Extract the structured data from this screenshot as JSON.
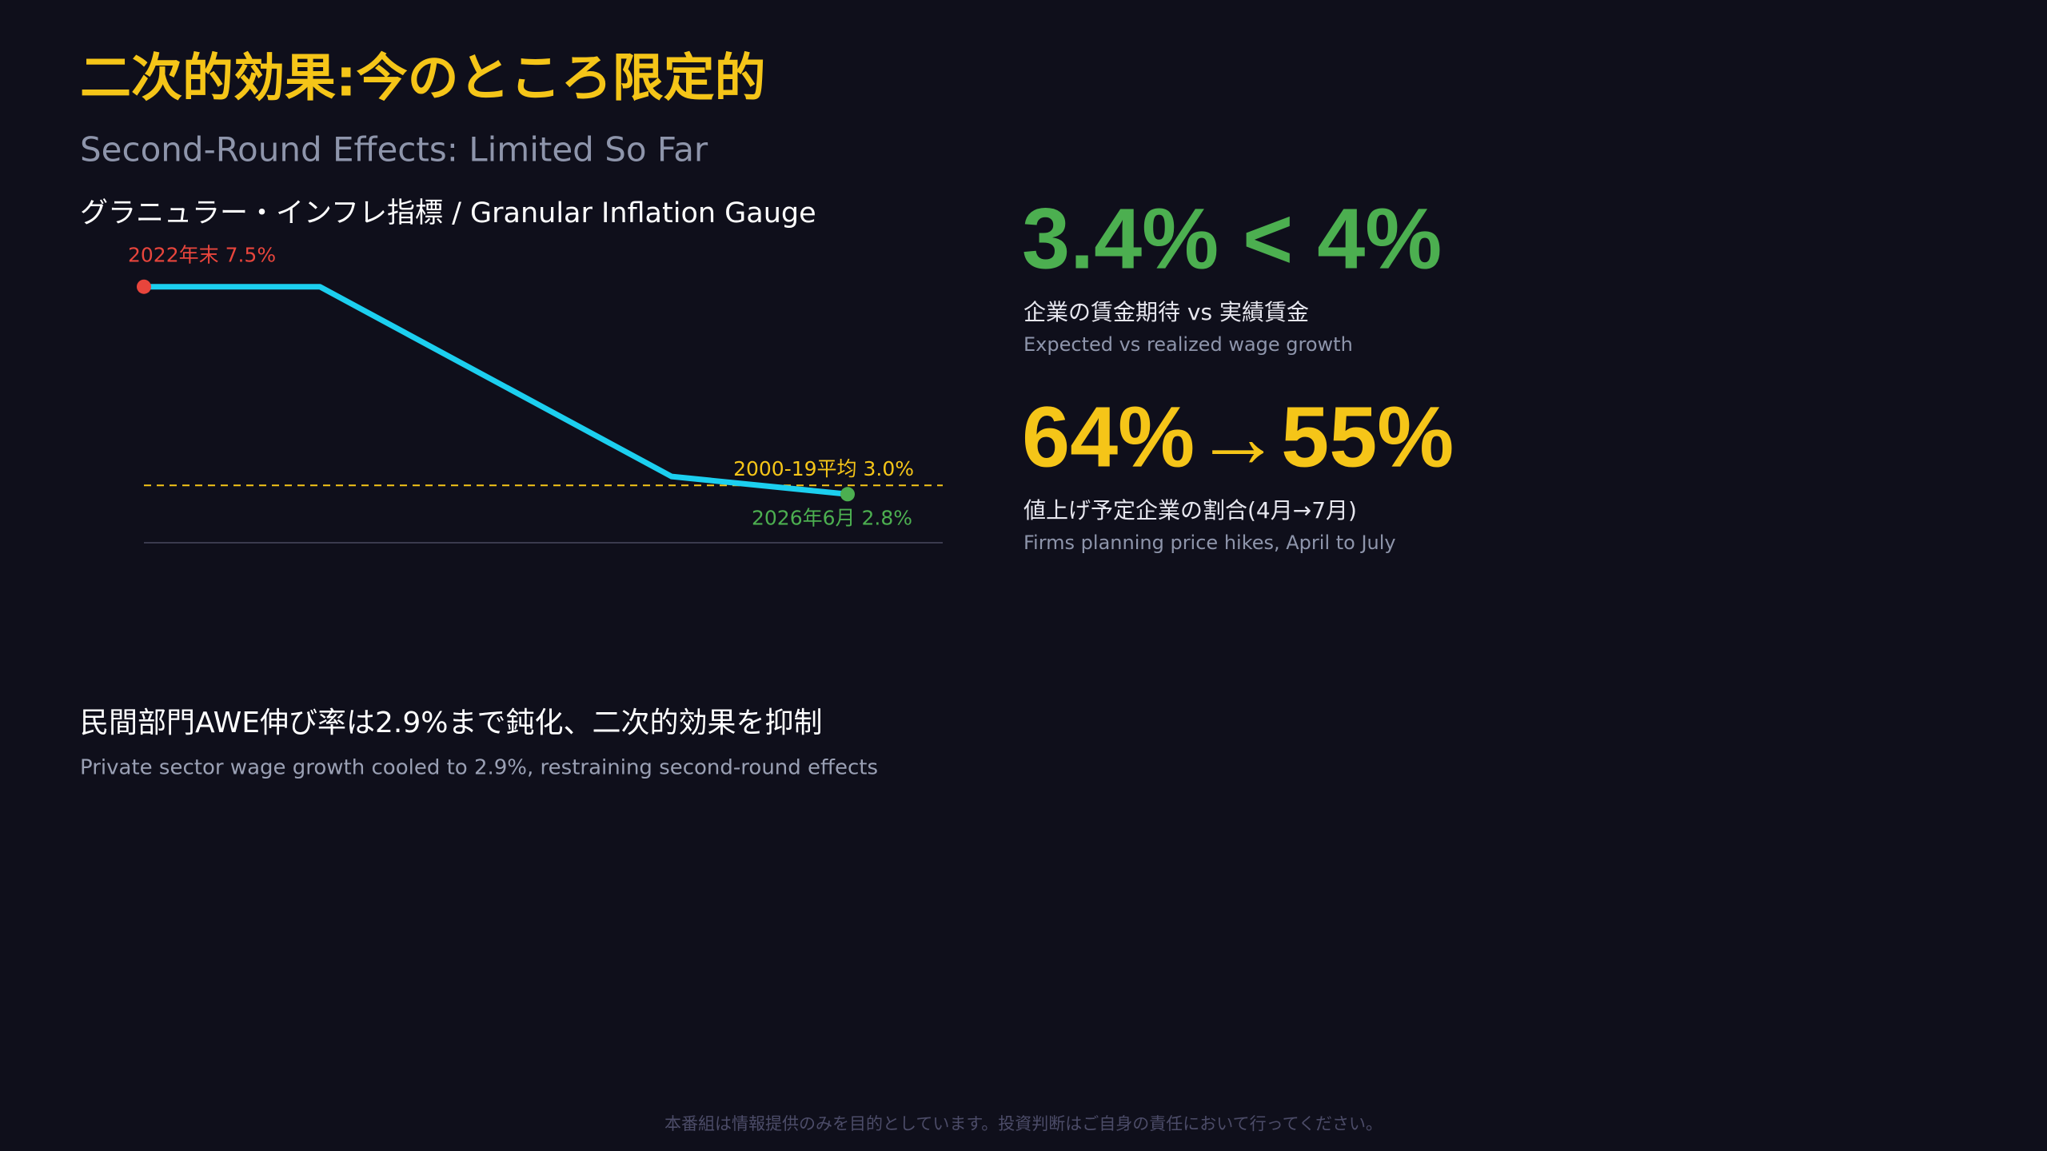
{
  "header": {
    "title": "二次的効果:今のところ限定的",
    "subtitle": "Second-Round Effects: Limited So Far",
    "title_color": "#f5c518"
  },
  "chart_data": {
    "type": "line",
    "title": "グラニュラー・インフレ指標 / Granular Inflation Gauge",
    "x": [
      0,
      1,
      3,
      4
    ],
    "xlim": [
      0,
      4.5
    ],
    "ylim": [
      1.7,
      8.4
    ],
    "series": [
      {
        "name": null,
        "color": "#1ccfef",
        "values": [
          7.5,
          7.5,
          3.2,
          2.8
        ]
      }
    ],
    "start_label": "2022年末 7.5%",
    "start_color": "#e8453c",
    "end_label": "2026年6月 2.8%",
    "end_color": "#4caf50",
    "reference": {
      "value": 3.0,
      "label": "2000-19平均 3.0%",
      "color": "#f5c518"
    }
  },
  "stats": [
    {
      "value": "3.4% < 4%",
      "color": "#4caf50",
      "label": "企業の賃金期待 vs 実績賃金",
      "sublabel": "Expected vs realized wage growth"
    },
    {
      "value": "64%→55%",
      "color": "#f5c518",
      "label": "値上げ予定企業の割合(4月→7月)",
      "sublabel": "Firms planning price hikes, April to July"
    }
  ],
  "summary": {
    "text": "民間部門AWE伸び率は2.9%まで鈍化、二次的効果を抑制",
    "subtext": "Private sector wage growth cooled to 2.9%, restraining second-round effects"
  },
  "footer": "本番組は情報提供のみを目的としています。投資判断はご自身の責任において行ってください。"
}
